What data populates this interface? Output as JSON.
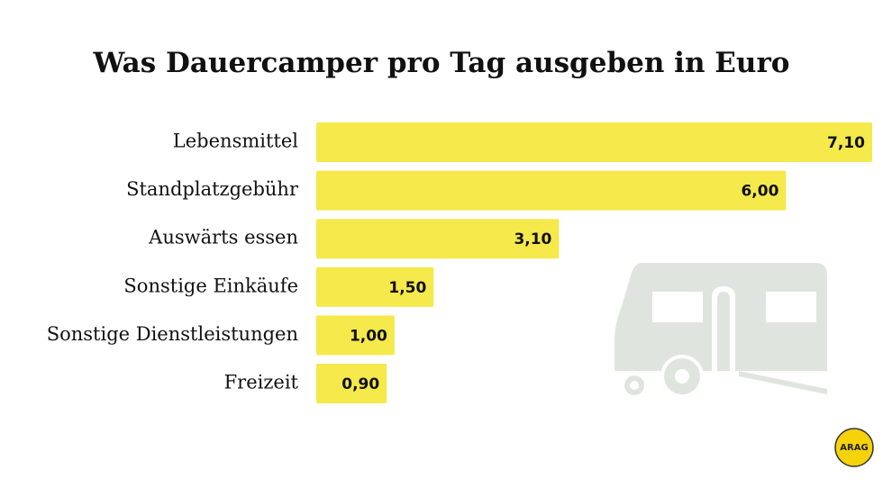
{
  "chart_data": {
    "type": "hbar",
    "title": "Was Dauercamper pro Tag ausgeben in Euro",
    "categories": [
      "Lebensmittel",
      "Standplatzgebühr",
      "Auswärts essen",
      "Sonstige Einkäufe",
      "Sonstige Dienstleistungen",
      "Freizeit"
    ],
    "values": [
      7.1,
      6.0,
      3.1,
      1.5,
      1.0,
      0.9
    ],
    "value_labels": [
      "7,10",
      "6,00",
      "3,10",
      "1,50",
      "1,00",
      "0,90"
    ],
    "color": "#f5e94b"
  },
  "logo": "ARAG"
}
